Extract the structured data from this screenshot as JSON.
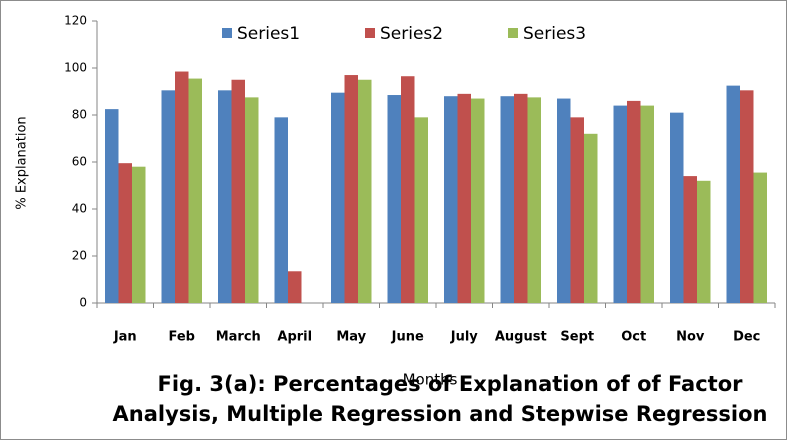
{
  "chart_data": {
    "type": "bar",
    "title": null,
    "x_label": "Months",
    "y_label": "% Explanation",
    "caption": [
      "Fig. 3(a): Percentages of Explanation of  of Factor",
      "Analysis, Multiple Regression and Stepwise Regression"
    ],
    "categories": [
      "Jan",
      "Feb",
      "March",
      "April",
      "May",
      "June",
      "July",
      "August",
      "Sept",
      "Oct",
      "Nov",
      "Dec"
    ],
    "series": [
      {
        "name": "Series1",
        "color": "#4f81bd",
        "values": [
          82.5,
          90.5,
          90.5,
          79,
          89.5,
          88.5,
          88,
          88,
          87,
          84,
          81,
          92.5
        ]
      },
      {
        "name": "Series2",
        "color": "#c0504d",
        "values": [
          59.5,
          98.5,
          95,
          13.5,
          97,
          96.5,
          89,
          89,
          79,
          86,
          54,
          90.5
        ]
      },
      {
        "name": "Series3",
        "color": "#9bbb59",
        "values": [
          58,
          95.5,
          87.5,
          0,
          95,
          79,
          87,
          87.5,
          72,
          84,
          52,
          55.5
        ]
      }
    ],
    "ylim": [
      0,
      120
    ],
    "yticks": [
      0,
      20,
      40,
      60,
      80,
      100,
      120
    ],
    "grid": false,
    "legend": "top"
  }
}
